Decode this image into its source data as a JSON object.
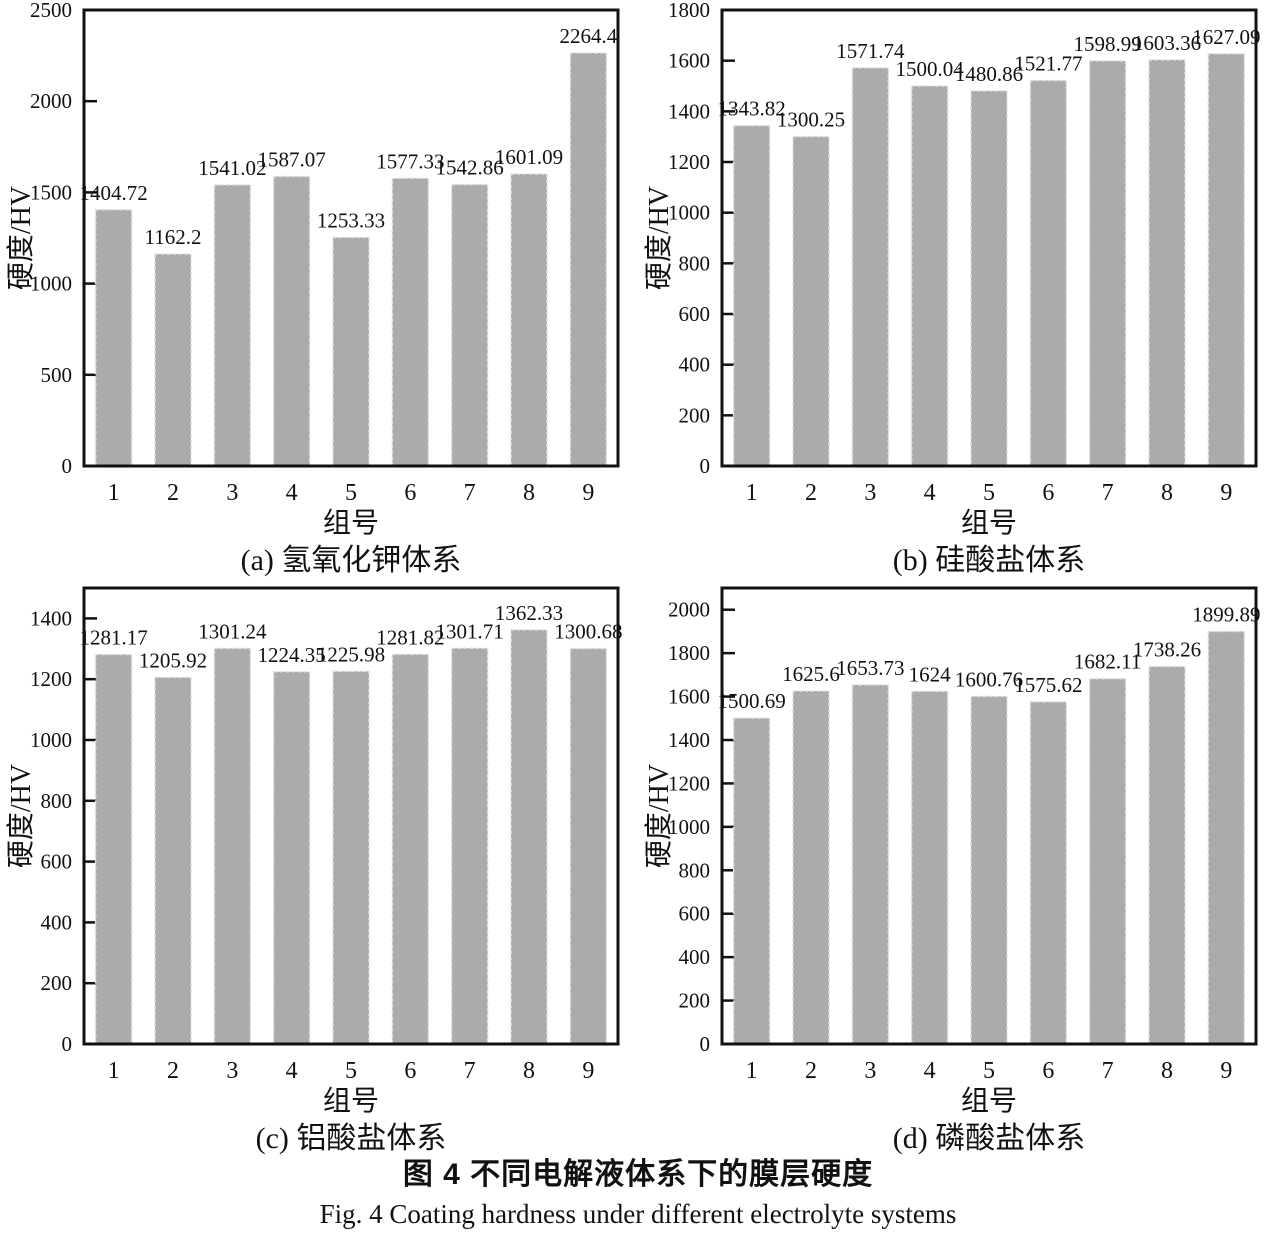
{
  "figure": {
    "caption_cn": "图 4  不同电解液体系下的膜层硬度",
    "caption_en": "Fig. 4   Coating hardness under different electrolyte systems"
  },
  "colors": {
    "bar_fill": "#ababab",
    "bar_edge": "#e0e0e0",
    "axis": "#111111",
    "text": "#111111",
    "background": "#ffffff"
  },
  "chart_data": [
    {
      "id": "a",
      "type": "bar",
      "caption": "(a) 氢氧化钾体系",
      "xlabel": "组号",
      "ylabel": "硬度/HV",
      "categories": [
        "1",
        "2",
        "3",
        "4",
        "5",
        "6",
        "7",
        "8",
        "9"
      ],
      "values": [
        1404.72,
        1162.2,
        1541.02,
        1587.07,
        1253.33,
        1577.33,
        1542.86,
        1601.09,
        2264.4
      ],
      "value_labels": [
        "1404.72",
        "1162.2",
        "1541.02",
        "1587.07",
        "1253.33",
        "1577.33",
        "1542.86",
        "1601.09",
        "2264.4"
      ],
      "ylim": [
        0,
        2500
      ],
      "ytick_step": 500,
      "ytick_labels": [
        "0",
        "500",
        "1000",
        "1500",
        "2000",
        "2500"
      ],
      "grid": false,
      "legend": null
    },
    {
      "id": "b",
      "type": "bar",
      "caption": "(b) 硅酸盐体系",
      "xlabel": "组号",
      "ylabel": "硬度/HV",
      "categories": [
        "1",
        "2",
        "3",
        "4",
        "5",
        "6",
        "7",
        "8",
        "9"
      ],
      "values": [
        1343.82,
        1300.25,
        1571.74,
        1500.04,
        1480.86,
        1521.77,
        1598.99,
        1603.36,
        1627.09
      ],
      "value_labels": [
        "1343.82",
        "1300.25",
        "1571.74",
        "1500.04",
        "1480.86",
        "1521.77",
        "1598.99",
        "1603.36",
        "1627.09"
      ],
      "ylim": [
        0,
        1800
      ],
      "ytick_step": 200,
      "ytick_labels": [
        "0",
        "200",
        "400",
        "600",
        "800",
        "1000",
        "1200",
        "1400",
        "1600",
        "1800"
      ],
      "grid": false,
      "legend": null
    },
    {
      "id": "c",
      "type": "bar",
      "caption": "(c) 铝酸盐体系",
      "xlabel": "组号",
      "ylabel": "硬度/HV",
      "categories": [
        "1",
        "2",
        "3",
        "4",
        "5",
        "6",
        "7",
        "8",
        "9"
      ],
      "values": [
        1281.17,
        1205.92,
        1301.24,
        1224.35,
        1225.98,
        1281.82,
        1301.71,
        1362.33,
        1300.68
      ],
      "value_labels": [
        "1281.17",
        "1205.92",
        "1301.24",
        "1224.35",
        "1225.98",
        "1281.82",
        "1301.71",
        "1362.33",
        "1300.68"
      ],
      "ylim": [
        0,
        1500
      ],
      "ytick_step": 200,
      "ytick_labels": [
        "0",
        "200",
        "400",
        "600",
        "800",
        "1000",
        "1200",
        "1400"
      ],
      "grid": false,
      "legend": null
    },
    {
      "id": "d",
      "type": "bar",
      "caption": "(d) 磷酸盐体系",
      "xlabel": "组号",
      "ylabel": "硬度/HV",
      "categories": [
        "1",
        "2",
        "3",
        "4",
        "5",
        "6",
        "7",
        "8",
        "9"
      ],
      "values": [
        1500.69,
        1625.6,
        1653.73,
        1624,
        1600.76,
        1575.62,
        1682.11,
        1738.26,
        1899.89
      ],
      "value_labels": [
        "1500.69",
        "1625.6",
        "1653.73",
        "1624",
        "1600.76",
        "1575.62",
        "1682.11",
        "1738.26",
        "1899.89"
      ],
      "ylim": [
        0,
        2100
      ],
      "ytick_step": 200,
      "ytick_labels": [
        "0",
        "200",
        "400",
        "600",
        "800",
        "1000",
        "1200",
        "1400",
        "1600",
        "1800",
        "2000"
      ],
      "grid": false,
      "legend": null
    }
  ]
}
